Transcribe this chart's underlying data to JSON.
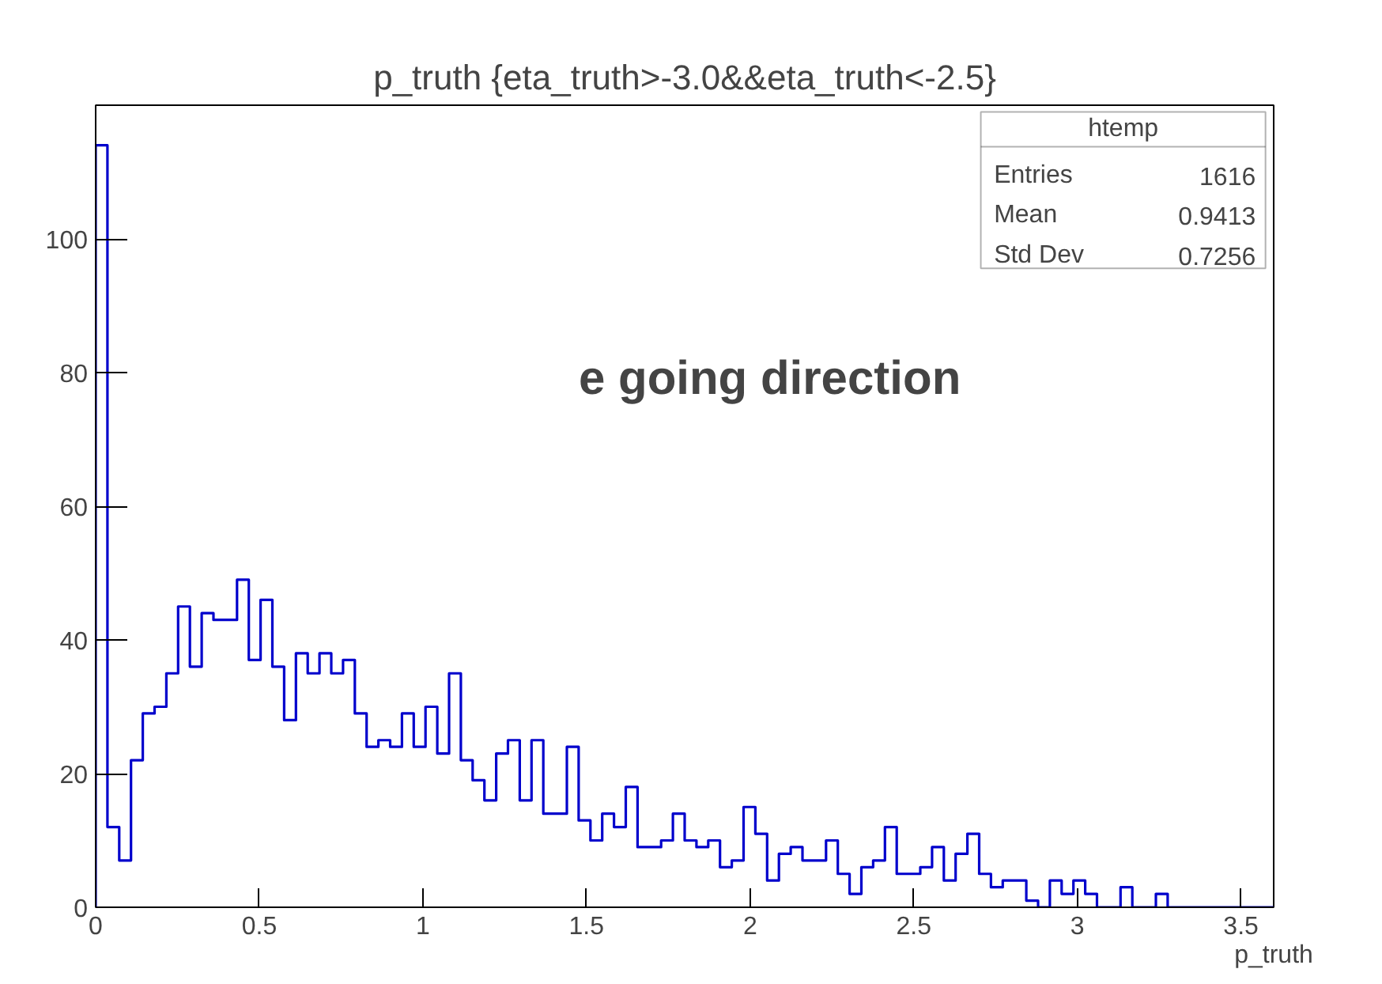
{
  "chart_data": {
    "type": "histogram",
    "title": "p_truth {eta_truth>-3.0&&eta_truth<-2.5}",
    "xlabel": "p_truth",
    "color": "#0000cc",
    "bins": [
      0,
      0.036,
      0.072,
      0.108,
      0.144,
      0.18,
      0.216,
      0.252,
      0.288,
      0.324,
      0.36,
      0.396,
      0.432,
      0.468,
      0.504,
      0.54,
      0.576,
      0.612,
      0.648,
      0.684,
      0.72,
      0.756,
      0.792,
      0.828,
      0.864,
      0.9,
      0.936,
      0.972,
      1.008,
      1.044,
      1.08,
      1.116,
      1.152,
      1.188,
      1.224,
      1.26,
      1.296,
      1.332,
      1.368,
      1.404,
      1.44,
      1.476,
      1.512,
      1.548,
      1.584,
      1.62,
      1.656,
      1.692,
      1.728,
      1.764,
      1.8,
      1.836,
      1.872,
      1.908,
      1.944,
      1.98,
      2.016,
      2.052,
      2.088,
      2.124,
      2.16,
      2.196,
      2.232,
      2.268,
      2.304,
      2.34,
      2.376,
      2.412,
      2.448,
      2.484,
      2.52,
      2.556,
      2.592,
      2.628,
      2.664,
      2.7,
      2.736,
      2.772,
      2.808,
      2.844,
      2.88,
      2.916,
      2.952,
      2.988,
      3.024,
      3.06,
      3.096,
      3.132,
      3.168,
      3.204,
      3.24,
      3.276,
      3.312,
      3.348,
      3.384,
      3.42,
      3.456,
      3.492,
      3.528,
      3.564,
      3.6
    ],
    "values": [
      114,
      12,
      7,
      22,
      29,
      30,
      35,
      45,
      36,
      44,
      43,
      43,
      49,
      37,
      46,
      36,
      28,
      38,
      35,
      38,
      35,
      37,
      29,
      24,
      25,
      24,
      29,
      24,
      30,
      23,
      35,
      22,
      19,
      16,
      23,
      25,
      16,
      25,
      14,
      14,
      24,
      13,
      10,
      14,
      12,
      18,
      9,
      9,
      10,
      14,
      10,
      9,
      10,
      6,
      7,
      15,
      11,
      4,
      8,
      9,
      7,
      7,
      10,
      5,
      2,
      6,
      7,
      12,
      5,
      5,
      6,
      9,
      4,
      8,
      11,
      5,
      3,
      4,
      4,
      1,
      0,
      4,
      2,
      4,
      2,
      0,
      0,
      3,
      0,
      0,
      2,
      0,
      0,
      0,
      0,
      0,
      0,
      0,
      0,
      0
    ],
    "xlim": [
      0,
      3.6
    ],
    "ylim": [
      0,
      120
    ],
    "xticks": [
      0,
      {
        "value": 0.5,
        "label": "0.5"
      },
      1,
      {
        "value": 1.5,
        "label": "1.5"
      },
      2,
      {
        "value": 2.5,
        "label": "2.5"
      },
      3,
      {
        "value": 3.5,
        "label": "3.5"
      }
    ],
    "yticks": [
      0,
      20,
      40,
      60,
      80,
      100
    ],
    "grid": false,
    "annotations": [
      "e going direction",
      "htemp",
      "Entries",
      "1616",
      "Mean",
      "0.9413",
      "Std Dev",
      "0.7256"
    ]
  }
}
